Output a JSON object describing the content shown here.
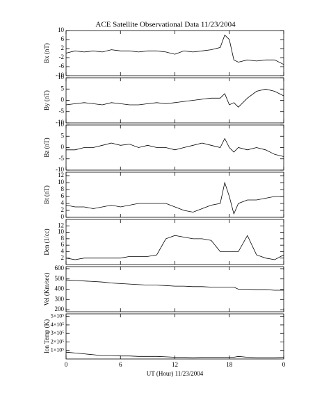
{
  "chart_data": [
    {
      "type": "line",
      "title": "ACE Satellite Observational Data   11/23/2004",
      "y_label": "Bx (nT)",
      "x": [
        0,
        1,
        2,
        3,
        4,
        5,
        6,
        7,
        8,
        9,
        10,
        11,
        12,
        13,
        14,
        15,
        16,
        17,
        17.5,
        18,
        18.5,
        19,
        20,
        21,
        22,
        23,
        24
      ],
      "values": [
        0,
        1,
        0.5,
        1,
        0.5,
        1.5,
        1,
        1,
        0.5,
        1,
        1,
        0.5,
        -0.5,
        1,
        0.5,
        1,
        1.5,
        2.5,
        8,
        6,
        -3,
        -4,
        -3,
        -3.5,
        -3,
        -3,
        -5
      ],
      "xlim": [
        0,
        24
      ],
      "ylim": [
        -10,
        10
      ],
      "yticks": [
        -10,
        -6,
        -2,
        2,
        6,
        10
      ],
      "color": "#000000"
    },
    {
      "type": "line",
      "y_label": "By (nT)",
      "x": [
        0,
        1,
        2,
        3,
        4,
        5,
        6,
        7,
        8,
        9,
        10,
        11,
        12,
        13,
        14,
        15,
        16,
        17,
        17.5,
        18,
        18.5,
        19,
        20,
        21,
        22,
        23,
        24
      ],
      "values": [
        -2,
        -1.5,
        -1,
        -1.5,
        -2,
        -1,
        -1.5,
        -2,
        -2,
        -1.5,
        -1,
        -1.5,
        -1,
        -0.5,
        0,
        0.5,
        1,
        1,
        3,
        -2,
        -1,
        -3,
        1,
        4,
        5,
        4,
        2
      ],
      "xlim": [
        0,
        24
      ],
      "ylim": [
        -10,
        10
      ],
      "yticks": [
        -10,
        -5,
        0,
        5,
        10
      ],
      "color": "#000000"
    },
    {
      "type": "line",
      "y_label": "Bz (nT)",
      "x": [
        0,
        1,
        2,
        3,
        4,
        5,
        6,
        7,
        8,
        9,
        10,
        11,
        12,
        13,
        14,
        15,
        16,
        17,
        17.5,
        18,
        18.5,
        19,
        20,
        21,
        22,
        23,
        24
      ],
      "values": [
        -1,
        -1,
        0,
        0,
        1,
        2,
        1,
        1.5,
        0,
        1,
        0,
        0,
        -1,
        0,
        1,
        2,
        1,
        0,
        4,
        0,
        -2,
        0,
        -1,
        0,
        -1,
        -3,
        -4
      ],
      "xlim": [
        0,
        24
      ],
      "ylim": [
        -10,
        10
      ],
      "yticks": [
        -10,
        -5,
        0,
        5,
        10
      ],
      "color": "#000000"
    },
    {
      "type": "line",
      "y_label": "Bt (nT)",
      "x": [
        0,
        1,
        2,
        3,
        4,
        5,
        6,
        7,
        8,
        9,
        10,
        11,
        12,
        13,
        14,
        15,
        16,
        17,
        17.5,
        18,
        18.5,
        19,
        20,
        21,
        22,
        23,
        24
      ],
      "values": [
        3.5,
        3,
        3,
        2.5,
        3,
        3.5,
        3,
        3.5,
        4,
        4,
        4,
        4,
        3,
        2,
        1.5,
        2.5,
        3.5,
        4,
        10,
        6,
        1,
        4,
        5,
        5,
        5.5,
        6,
        6
      ],
      "xlim": [
        0,
        24
      ],
      "ylim": [
        0,
        13
      ],
      "yticks": [
        0,
        2,
        4,
        6,
        8,
        10,
        12
      ],
      "color": "#000000"
    },
    {
      "type": "line",
      "y_label": "Den (1/cc)",
      "x": [
        0,
        1,
        2,
        3,
        4,
        5,
        6,
        7,
        8,
        9,
        10,
        11,
        12,
        13,
        14,
        15,
        16,
        17,
        17.5,
        18,
        18.5,
        19,
        20,
        21,
        22,
        23,
        24
      ],
      "values": [
        2,
        1.5,
        2,
        2,
        2,
        2,
        2,
        2.5,
        2.5,
        2.5,
        3,
        8,
        9,
        8.5,
        8,
        8,
        7.5,
        4,
        4,
        4,
        4,
        4,
        9,
        3,
        2,
        1.5,
        3
      ],
      "xlim": [
        0,
        24
      ],
      "ylim": [
        0,
        14
      ],
      "yticks": [
        2,
        4,
        6,
        8,
        10,
        12
      ],
      "color": "#000000"
    },
    {
      "type": "line",
      "y_label": "Vel (Km/sec)",
      "x": [
        0,
        1,
        2,
        3,
        4,
        5,
        6,
        7,
        8,
        9,
        10,
        11,
        12,
        13,
        14,
        15,
        16,
        17,
        17.5,
        18,
        18.5,
        19,
        20,
        21,
        22,
        23,
        24
      ],
      "values": [
        490,
        485,
        480,
        475,
        470,
        460,
        455,
        450,
        445,
        440,
        440,
        435,
        430,
        430,
        425,
        425,
        420,
        420,
        420,
        420,
        420,
        400,
        400,
        395,
        395,
        390,
        390
      ],
      "xlim": [
        0,
        24
      ],
      "ylim": [
        180,
        620
      ],
      "yticks": [
        200,
        300,
        400,
        500,
        600
      ],
      "color": "#000000"
    },
    {
      "type": "line",
      "y_label": "Ion Temp (K)",
      "x_label": "UT (Hour)  11/23/2004",
      "x": [
        0,
        1,
        2,
        3,
        4,
        5,
        6,
        7,
        8,
        9,
        10,
        11,
        12,
        13,
        14,
        15,
        16,
        17,
        17.5,
        18,
        18.5,
        19,
        20,
        21,
        22,
        23,
        24
      ],
      "values": [
        80000,
        70000,
        60000,
        50000,
        40000,
        40000,
        35000,
        35000,
        30000,
        30000,
        30000,
        25000,
        20000,
        20000,
        15000,
        20000,
        20000,
        20000,
        20000,
        20000,
        20000,
        30000,
        20000,
        15000,
        15000,
        15000,
        20000
      ],
      "xlim": [
        0,
        24
      ],
      "ylim": [
        0,
        530000
      ],
      "yticks": [
        {
          "value": 100000,
          "label": "1×10⁵"
        },
        {
          "value": 200000,
          "label": "2×10⁵"
        },
        {
          "value": 300000,
          "label": "3×10⁵"
        },
        {
          "value": 400000,
          "label": "4×10⁵"
        },
        {
          "value": 500000,
          "label": "5×10⁵"
        }
      ],
      "xticks": [
        0,
        6,
        12,
        18,
        {
          "value": 24,
          "label": "0"
        }
      ],
      "color": "#000000"
    }
  ]
}
